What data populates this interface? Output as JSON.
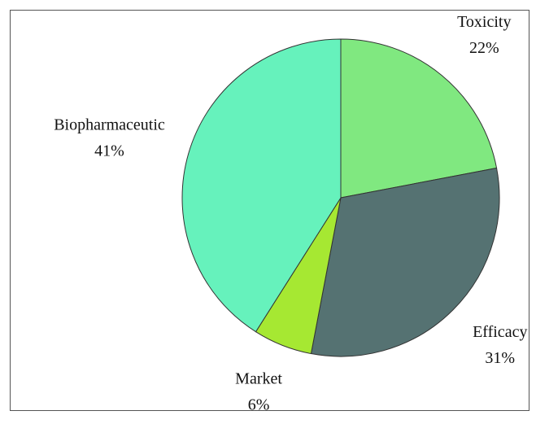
{
  "chart_data": {
    "type": "pie",
    "categories": [
      "Toxicity",
      "Efficacy",
      "Market",
      "Biopharmaceutic"
    ],
    "values": [
      22,
      31,
      6,
      41
    ],
    "value_labels": [
      "22%",
      "31%",
      "6%",
      "41%"
    ],
    "colors": [
      "#80e880",
      "#557272",
      "#a6e832",
      "#66f2bc"
    ]
  }
}
